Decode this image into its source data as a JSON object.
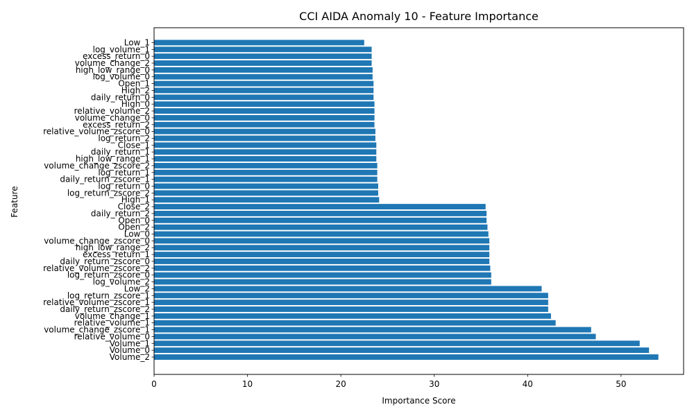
{
  "chart_data": {
    "type": "bar",
    "orientation": "horizontal",
    "title": "CCI AIDA Anomaly 10 - Feature Importance",
    "xlabel": "Importance Score",
    "ylabel": "Feature",
    "xlim": [
      0,
      56.7
    ],
    "xticks": [
      0,
      10,
      20,
      30,
      40,
      50
    ],
    "grid": false,
    "bar_color": "#1f77b4",
    "categories": [
      "Low_1",
      "log_volume_1",
      "excess_return_0",
      "volume_change_2",
      "high_low_range_0",
      "log_volume_0",
      "Open_1",
      "High_2",
      "daily_return_0",
      "High_0",
      "relative_volume_2",
      "volume_change_0",
      "excess_return_2",
      "relative_volume_zscore_0",
      "log_return_2",
      "Close_1",
      "daily_return_1",
      "high_low_range_1",
      "volume_change_zscore_2",
      "log_return_1",
      "daily_return_zscore_1",
      "log_return_0",
      "log_return_zscore_2",
      "High_1",
      "Close_2",
      "daily_return_2",
      "Open_0",
      "Open_2",
      "Low_0",
      "volume_change_zscore_0",
      "high_low_range_2",
      "excess_return_1",
      "daily_return_zscore_0",
      "relative_volume_zscore_2",
      "log_return_zscore_0",
      "log_volume_2",
      "Low_2",
      "log_return_zscore_1",
      "relative_volume_zscore_1",
      "daily_return_zscore_2",
      "volume_change_1",
      "relative_volume_1",
      "volume_change_zscore_1",
      "relative_volume_0",
      "Volume_1",
      "Volume_0",
      "Volume_2"
    ],
    "values": [
      22.5,
      23.3,
      23.3,
      23.3,
      23.4,
      23.4,
      23.5,
      23.5,
      23.5,
      23.6,
      23.6,
      23.6,
      23.6,
      23.7,
      23.7,
      23.8,
      23.8,
      23.8,
      23.9,
      23.9,
      23.9,
      24.0,
      24.0,
      24.1,
      35.5,
      35.6,
      35.6,
      35.7,
      35.8,
      35.9,
      35.9,
      35.9,
      35.9,
      36.0,
      36.1,
      36.1,
      41.5,
      42.2,
      42.2,
      42.2,
      42.5,
      43.0,
      46.8,
      47.3,
      52.0,
      53.0,
      54.0
    ]
  }
}
